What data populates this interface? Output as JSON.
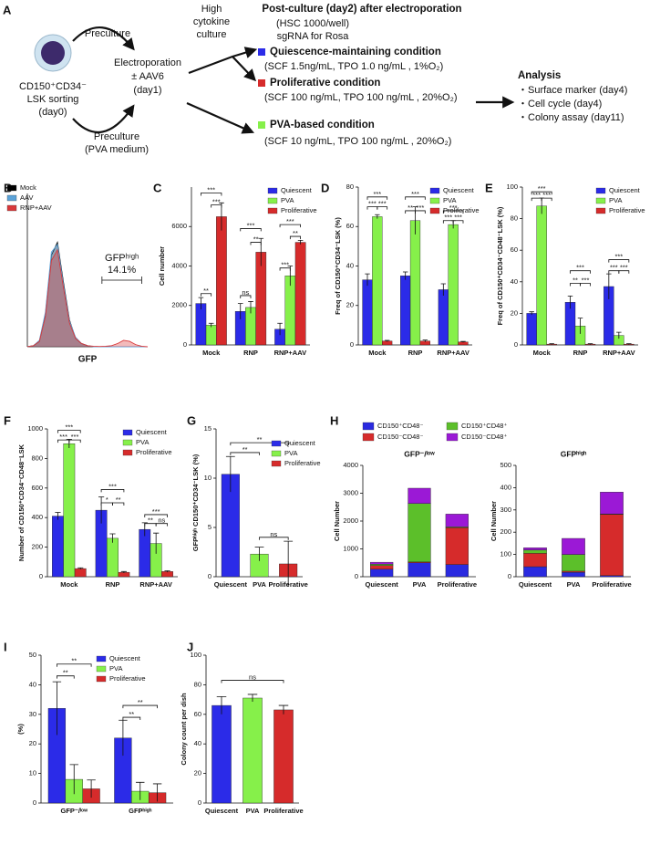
{
  "schematic": {
    "panel": "A",
    "sorting": [
      "CD150⁺CD34⁻",
      "LSK sorting",
      "(day0)"
    ],
    "preculture_top": "Preculture",
    "preculture_bottom": [
      "Preculture",
      "(PVA medium)"
    ],
    "electroporation": [
      "Electroporation",
      "± AAV6",
      "(day1)"
    ],
    "culture": [
      "High",
      "cytokine",
      "culture"
    ],
    "post_culture": {
      "title": "Post-culture (day2) after electroporation",
      "notes": [
        "(HSC 1000/well)",
        "sgRNA for Rosa"
      ]
    },
    "conditions": [
      {
        "name": "Quiescence-maintaining condition",
        "detail": "(SCF 1.5ng/mL, TPO 1.0 ng/mL , 1%O₂)",
        "color": "#2b2be8"
      },
      {
        "name": "Proliferative condition",
        "detail": "(SCF 100 ng/mL, TPO 100 ng/mL , 20%O₂)",
        "color": "#d62b2b"
      },
      {
        "name": "PVA-based condition",
        "detail": "(SCF 10 ng/mL, TPO 100 ng/mL , 20%O₂)",
        "color": "#86f04a"
      }
    ],
    "analysis": {
      "title": "Analysis",
      "items": [
        "・Surface marker (day4)",
        "・Cell cycle (day4)",
        "・Colony assay (day11)"
      ]
    }
  },
  "chart_data": [
    {
      "type": "density",
      "panel": "B",
      "xlabel": "GFP",
      "x": [
        0,
        5,
        10,
        15,
        20,
        25,
        30,
        35,
        40,
        45,
        50,
        55,
        60,
        65,
        70,
        75,
        80,
        85,
        90,
        95,
        100
      ],
      "xlim": [
        0,
        100
      ],
      "ylim": [
        0,
        100
      ],
      "legend": "top-left",
      "series": [
        {
          "name": "Mock",
          "color": "#000000",
          "values": [
            0,
            1,
            5,
            30,
            85,
            97,
            60,
            25,
            8,
            3,
            1,
            0,
            0,
            0,
            0,
            0,
            0,
            0,
            0,
            0,
            0
          ]
        },
        {
          "name": "AAV",
          "color": "#5ba3d9",
          "values": [
            0,
            1,
            6,
            32,
            88,
            95,
            58,
            24,
            9,
            3,
            1,
            0,
            0,
            0,
            0,
            0,
            0,
            0,
            0,
            0,
            0
          ]
        },
        {
          "name": "RNP+AAV",
          "color": "#d9383a",
          "values": [
            0,
            1,
            5,
            28,
            80,
            90,
            55,
            22,
            8,
            3,
            1,
            0.5,
            0.3,
            0.5,
            1,
            3,
            6,
            5,
            2,
            0.5,
            0
          ]
        }
      ],
      "gate": {
        "range": [
          62,
          95
        ],
        "label": "GFPʰⁱᵍʰ",
        "value": 14.1,
        "value_label": "14.1%"
      }
    },
    {
      "type": "bar",
      "panel": "C",
      "ylabel": "Cell number",
      "categories": [
        "Mock",
        "RNP",
        "RNP+AAV"
      ],
      "legend": "top-right",
      "series": [
        {
          "name": "Quiescent",
          "color": "#2b2be8",
          "values": [
            2100,
            1700,
            800
          ],
          "errors": [
            300,
            400,
            300
          ]
        },
        {
          "name": "PVA",
          "color": "#86f04a",
          "values": [
            1000,
            1900,
            3500
          ],
          "errors": [
            100,
            300,
            500
          ]
        },
        {
          "name": "Proliferative",
          "color": "#d62b2b",
          "values": [
            6500,
            4700,
            5200
          ],
          "errors": [
            700,
            700,
            100
          ]
        }
      ],
      "ylim": [
        0,
        8000
      ],
      "yticks": [
        0,
        2000,
        4000,
        6000
      ],
      "brackets": [
        {
          "category": 0,
          "between": [
            "Quiescent",
            "Proliferative"
          ],
          "y": 7700,
          "label": "***"
        },
        {
          "category": 0,
          "between": [
            "PVA",
            "Proliferative"
          ],
          "y": 7100,
          "label": "***"
        },
        {
          "category": 0,
          "between": [
            "Quiescent",
            "PVA"
          ],
          "y": 2600,
          "label": "**"
        },
        {
          "category": 1,
          "between": [
            "Quiescent",
            "Proliferative"
          ],
          "y": 5900,
          "label": "***"
        },
        {
          "category": 1,
          "between": [
            "PVA",
            "Proliferative"
          ],
          "y": 5200,
          "label": "**"
        },
        {
          "category": 1,
          "between": [
            "Quiescent",
            "PVA"
          ],
          "y": 2500,
          "label": "ns"
        },
        {
          "category": 2,
          "between": [
            "Quiescent",
            "Proliferative"
          ],
          "y": 6100,
          "label": "***"
        },
        {
          "category": 2,
          "between": [
            "PVA",
            "Proliferative"
          ],
          "y": 5500,
          "label": "**"
        },
        {
          "category": 2,
          "between": [
            "Quiescent",
            "PVA"
          ],
          "y": 3900,
          "label": "***"
        }
      ]
    },
    {
      "type": "bar",
      "panel": "D",
      "ylabel": "Freq of CD150⁺CD34⁻LSK (%)",
      "categories": [
        "Mock",
        "RNP",
        "RNP+AAV"
      ],
      "legend": "top-right",
      "series": [
        {
          "name": "Quiescent",
          "color": "#2b2be8",
          "values": [
            33,
            35,
            28
          ],
          "errors": [
            3,
            2,
            3
          ]
        },
        {
          "name": "PVA",
          "color": "#86f04a",
          "values": [
            65,
            63,
            61
          ],
          "errors": [
            1,
            7,
            2
          ]
        },
        {
          "name": "Proliferative",
          "color": "#d62b2b",
          "values": [
            2,
            2,
            1.5
          ],
          "errors": [
            0.3,
            0.5,
            0.3
          ]
        }
      ],
      "ylim": [
        0,
        80
      ],
      "yticks": [
        0,
        20,
        40,
        60,
        80
      ],
      "brackets": [
        {
          "category": 0,
          "between": [
            "Quiescent",
            "Proliferative"
          ],
          "y": 75,
          "label": "***"
        },
        {
          "category": 0,
          "between": [
            "Quiescent",
            "PVA"
          ],
          "y": 70,
          "label": "***"
        },
        {
          "category": 0,
          "between": [
            "PVA",
            "Proliferative"
          ],
          "y": 70,
          "label": "***"
        },
        {
          "category": 1,
          "between": [
            "Quiescent",
            "Proliferative"
          ],
          "y": 75,
          "label": "***"
        },
        {
          "category": 1,
          "between": [
            "Quiescent",
            "PVA"
          ],
          "y": 68,
          "label": "**"
        },
        {
          "category": 1,
          "between": [
            "PVA",
            "Proliferative"
          ],
          "y": 68,
          "label": "***"
        },
        {
          "category": 2,
          "between": [
            "Quiescent",
            "Proliferative"
          ],
          "y": 68,
          "label": "***"
        },
        {
          "category": 2,
          "between": [
            "Quiescent",
            "PVA"
          ],
          "y": 63,
          "label": "***"
        },
        {
          "category": 2,
          "between": [
            "PVA",
            "Proliferative"
          ],
          "y": 63,
          "label": "***"
        }
      ]
    },
    {
      "type": "bar",
      "panel": "E",
      "ylabel": "Freq of CD150⁺CD34⁻CD48⁻LSK (%)",
      "categories": [
        "Mock",
        "RNP",
        "RNP+AAV"
      ],
      "legend": "top-right",
      "series": [
        {
          "name": "Quiescent",
          "color": "#2b2be8",
          "values": [
            20,
            27,
            37
          ],
          "errors": [
            1,
            4,
            8
          ]
        },
        {
          "name": "PVA",
          "color": "#86f04a",
          "values": [
            88,
            12,
            6
          ],
          "errors": [
            5,
            5,
            2
          ]
        },
        {
          "name": "Proliferative",
          "color": "#d62b2b",
          "values": [
            0.5,
            0.5,
            0.5
          ],
          "errors": [
            0.3,
            0.3,
            0.3
          ]
        }
      ],
      "ylim": [
        0,
        100
      ],
      "yticks": [
        0,
        20,
        40,
        60,
        80,
        100
      ],
      "brackets": [
        {
          "category": 0,
          "between": [
            "Quiescent",
            "Proliferative"
          ],
          "y": 97,
          "label": "***"
        },
        {
          "category": 0,
          "between": [
            "Quiescent",
            "PVA"
          ],
          "y": 93,
          "label": "***"
        },
        {
          "category": 0,
          "between": [
            "PVA",
            "Proliferative"
          ],
          "y": 93,
          "label": "***"
        },
        {
          "category": 1,
          "between": [
            "Quiescent",
            "Proliferative"
          ],
          "y": 47,
          "label": "***"
        },
        {
          "category": 1,
          "between": [
            "Quiescent",
            "PVA"
          ],
          "y": 39,
          "label": "**"
        },
        {
          "category": 1,
          "between": [
            "PVA",
            "Proliferative"
          ],
          "y": 39,
          "label": "***"
        },
        {
          "category": 2,
          "between": [
            "Quiescent",
            "Proliferative"
          ],
          "y": 54,
          "label": "***"
        },
        {
          "category": 2,
          "between": [
            "Quiescent",
            "PVA"
          ],
          "y": 47,
          "label": "***"
        },
        {
          "category": 2,
          "between": [
            "PVA",
            "Proliferative"
          ],
          "y": 47,
          "label": "***"
        }
      ]
    },
    {
      "type": "bar",
      "panel": "F",
      "ylabel": "Number of CD150⁺CD34⁻CD48⁻LSK",
      "categories": [
        "Mock",
        "RNP",
        "RNP+AAV"
      ],
      "legend": "top-right",
      "series": [
        {
          "name": "Quiescent",
          "color": "#2b2be8",
          "values": [
            410,
            450,
            320
          ],
          "errors": [
            25,
            90,
            45
          ]
        },
        {
          "name": "PVA",
          "color": "#86f04a",
          "values": [
            900,
            260,
            225
          ],
          "errors": [
            30,
            30,
            70
          ]
        },
        {
          "name": "Proliferative",
          "color": "#d62b2b",
          "values": [
            55,
            30,
            35
          ],
          "errors": [
            5,
            5,
            5
          ]
        }
      ],
      "ylim": [
        0,
        1000
      ],
      "yticks": [
        0,
        200,
        400,
        600,
        800,
        1000
      ],
      "brackets": [
        {
          "category": 0,
          "between": [
            "Quiescent",
            "Proliferative"
          ],
          "y": 990,
          "label": "***"
        },
        {
          "category": 0,
          "between": [
            "Quiescent",
            "PVA"
          ],
          "y": 925,
          "label": "***"
        },
        {
          "category": 0,
          "between": [
            "PVA",
            "Proliferative"
          ],
          "y": 925,
          "label": "***"
        },
        {
          "category": 1,
          "between": [
            "Quiescent",
            "Proliferative"
          ],
          "y": 590,
          "label": "***"
        },
        {
          "category": 1,
          "between": [
            "Quiescent",
            "PVA"
          ],
          "y": 500,
          "label": "*"
        },
        {
          "category": 1,
          "between": [
            "PVA",
            "Proliferative"
          ],
          "y": 500,
          "label": "**"
        },
        {
          "category": 2,
          "between": [
            "Quiescent",
            "Proliferative"
          ],
          "y": 420,
          "label": "***"
        },
        {
          "category": 2,
          "between": [
            "Quiescent",
            "PVA"
          ],
          "y": 360,
          "label": "**"
        },
        {
          "category": 2,
          "between": [
            "PVA",
            "Proliferative"
          ],
          "y": 360,
          "label": "ns"
        }
      ]
    },
    {
      "type": "bar",
      "panel": "G",
      "ylabel": "GFPʰⁱᵍʰ CD150⁺CD34⁻LSK (%)",
      "categories": [
        "Quiescent",
        "PVA",
        "Proliferative"
      ],
      "values": [
        10.4,
        2.3,
        1.3
      ],
      "errors": [
        1.8,
        0.7,
        2.3
      ],
      "colors": [
        "#2b2be8",
        "#86f04a",
        "#d62b2b"
      ],
      "legend_names": [
        "Quiescent",
        "PVA",
        "Proliferative"
      ],
      "legend": "top-right",
      "ylim": [
        0,
        15
      ],
      "yticks": [
        0,
        5,
        10,
        15
      ],
      "brackets": [
        {
          "between": [
            "Quiescent",
            "Proliferative"
          ],
          "y": 13.6,
          "label": "**"
        },
        {
          "between": [
            "Quiescent",
            "PVA"
          ],
          "y": 12.6,
          "label": "**"
        },
        {
          "between": [
            "PVA",
            "Proliferative"
          ],
          "y": 4,
          "label": "ns"
        }
      ]
    },
    {
      "type": "stacked_bar",
      "panel": "H",
      "title": "GFP⁻/ˡᵒʷ",
      "ylabel": "Cell Number",
      "categories": [
        "Quiescent",
        "PVA",
        "Proliferative"
      ],
      "legend": "top",
      "series": [
        {
          "name": "CD150⁺CD48⁻",
          "color": "#2a2ae0",
          "values": [
            270,
            500,
            440
          ]
        },
        {
          "name": "CD150⁻CD48⁻",
          "color": "#d62b2b",
          "values": [
            130,
            30,
            1320
          ]
        },
        {
          "name": "CD150⁺CD48⁺",
          "color": "#5cbf2a",
          "values": [
            50,
            2100,
            30
          ]
        },
        {
          "name": "CD150⁻CD48⁺",
          "color": "#9b19d6",
          "values": [
            70,
            550,
            460
          ]
        }
      ],
      "ylim": [
        0,
        4000
      ],
      "yticks": [
        0,
        1000,
        2000,
        3000,
        4000
      ]
    },
    {
      "type": "stacked_bar",
      "title": "GFPʰⁱᵍʰ",
      "ylabel": "Cell Number",
      "categories": [
        "Quiescent",
        "PVA",
        "Proliferative"
      ],
      "series": [
        {
          "color": "#2a2ae0",
          "values": [
            45,
            20,
            5
          ]
        },
        {
          "color": "#d62b2b",
          "values": [
            60,
            5,
            275
          ]
        },
        {
          "color": "#5cbf2a",
          "values": [
            15,
            75,
            2
          ]
        },
        {
          "color": "#9b19d6",
          "values": [
            10,
            72,
            98
          ]
        }
      ],
      "ylim": [
        0,
        500
      ],
      "yticks": [
        0,
        100,
        200,
        300,
        400,
        500
      ]
    },
    {
      "type": "bar",
      "panel": "I",
      "ylabel": "(%)",
      "categories": [
        "GFP⁻/ˡᵒʷ",
        "GFPʰⁱᵍʰ"
      ],
      "legend": "top-right",
      "series": [
        {
          "name": "Quiescent",
          "color": "#2b2be8",
          "values": [
            32,
            22
          ],
          "errors": [
            9,
            6
          ]
        },
        {
          "name": "PVA",
          "color": "#86f04a",
          "values": [
            8,
            4
          ],
          "errors": [
            5,
            3
          ]
        },
        {
          "name": "Proliferative",
          "color": "#d62b2b",
          "values": [
            4.8,
            3.5
          ],
          "errors": [
            3,
            3
          ]
        }
      ],
      "ylim": [
        0,
        50
      ],
      "yticks": [
        0,
        10,
        20,
        30,
        40,
        50
      ],
      "brackets": [
        {
          "category": 0,
          "between": [
            "Quiescent",
            "Proliferative"
          ],
          "y": 47,
          "label": "**"
        },
        {
          "category": 0,
          "between": [
            "Quiescent",
            "PVA"
          ],
          "y": 43,
          "label": "**"
        },
        {
          "category": 1,
          "between": [
            "Quiescent",
            "Proliferative"
          ],
          "y": 33,
          "label": "**"
        },
        {
          "category": 1,
          "between": [
            "Quiescent",
            "PVA"
          ],
          "y": 29,
          "label": "**"
        }
      ]
    },
    {
      "type": "bar",
      "panel": "J",
      "ylabel": "Colony count per dish",
      "categories": [
        "Quiescent",
        "PVA",
        "Proliferative"
      ],
      "values": [
        66,
        71,
        63
      ],
      "errors": [
        6,
        2.5,
        3
      ],
      "colors": [
        "#2b2be8",
        "#86f04a",
        "#d62b2b"
      ],
      "ylim": [
        0,
        100
      ],
      "yticks": [
        0,
        20,
        40,
        60,
        80,
        100
      ],
      "brackets": [
        {
          "between": [
            "Quiescent",
            "Proliferative"
          ],
          "y": 83,
          "label": "ns"
        }
      ]
    }
  ]
}
